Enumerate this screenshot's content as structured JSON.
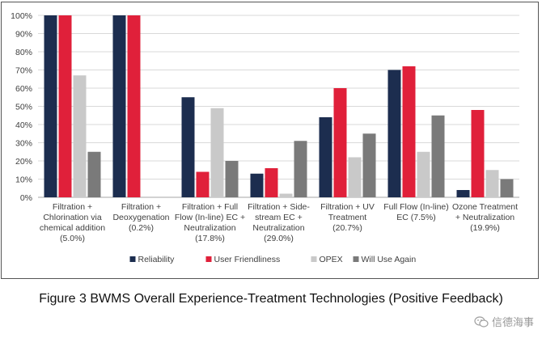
{
  "chart_data": {
    "type": "bar",
    "categories": [
      [
        "Filtration +",
        "Chlorination via",
        "chemical addition",
        "(5.0%)"
      ],
      [
        "Filtration +",
        "Deoxygenation",
        "(0.2%)"
      ],
      [
        "Filtration + Full",
        "Flow (In-line) EC +",
        "Neutralization",
        "(17.8%)"
      ],
      [
        "Filtration + Side-",
        "stream EC +",
        "Neutralization",
        "(29.0%)"
      ],
      [
        "Filtration + UV",
        "Treatment",
        "(20.7%)"
      ],
      [
        "Full Flow (In-line)",
        "EC (7.5%)"
      ],
      [
        "Ozone Treatment",
        "+ Neutralization",
        "(19.9%)"
      ]
    ],
    "series": [
      {
        "name": "Reliability",
        "color": "#1c2d4f",
        "values": [
          100,
          100,
          55,
          13,
          44,
          70,
          4
        ]
      },
      {
        "name": "User Friendliness",
        "color": "#e0203a",
        "values": [
          100,
          100,
          14,
          16,
          60,
          72,
          48
        ]
      },
      {
        "name": "OPEX",
        "color": "#c9c9c9",
        "values": [
          67,
          0,
          49,
          2,
          22,
          25,
          15
        ]
      },
      {
        "name": "Will Use Again",
        "color": "#7a7a7a",
        "values": [
          25,
          0,
          20,
          31,
          35,
          45,
          10
        ]
      }
    ],
    "y_ticks": [
      "0%",
      "10%",
      "20%",
      "30%",
      "40%",
      "50%",
      "60%",
      "70%",
      "80%",
      "90%",
      "100%"
    ],
    "ylim": [
      0,
      100
    ],
    "legend_position": "bottom"
  },
  "caption": "Figure 3 BWMS Overall Experience-Treatment Technologies (Positive Feedback)",
  "watermark": {
    "text": "信德海事",
    "icon": "wechat-icon"
  }
}
